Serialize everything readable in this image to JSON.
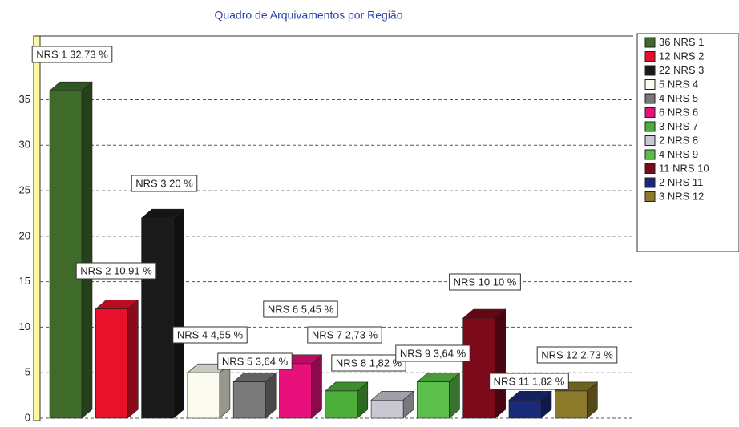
{
  "chart_data": {
    "type": "bar",
    "title": "Quadro de Arquivamentos por Região",
    "categories": [
      "NRS 1",
      "NRS 2",
      "NRS 3",
      "NRS 4",
      "NRS 5",
      "NRS 6",
      "NRS 7",
      "NRS 8",
      "NRS 9",
      "NRS 10",
      "NRS 11",
      "NRS 12"
    ],
    "values": [
      36,
      12,
      22,
      5,
      4,
      6,
      3,
      2,
      4,
      11,
      2,
      3
    ],
    "data_labels": [
      "NRS 1 32,73 %",
      "NRS 2 10,91 %",
      "NRS 3 20 %",
      "NRS 4 4,55 %",
      "NRS 5 3,64 %",
      "NRS 6 5,45 %",
      "NRS 7 2,73 %",
      "NRS 8 1,82 %",
      "NRS 9 3,64 %",
      "NRS 10 10 %",
      "NRS 11 1,82 %",
      "NRS 12 2,73 %"
    ],
    "colors": [
      "#3f6b2a",
      "#e8102a",
      "#1a1a1a",
      "#fbfbf0",
      "#7a7a7a",
      "#e8107a",
      "#4caf3a",
      "#c8c8d2",
      "#5cbf4a",
      "#7a0a1a",
      "#1a2a7a",
      "#8a7a2a"
    ],
    "ylim": [
      0,
      42
    ],
    "yticks": [
      0,
      5,
      10,
      15,
      20,
      25,
      30,
      35
    ],
    "grid": true,
    "legend": "right"
  }
}
